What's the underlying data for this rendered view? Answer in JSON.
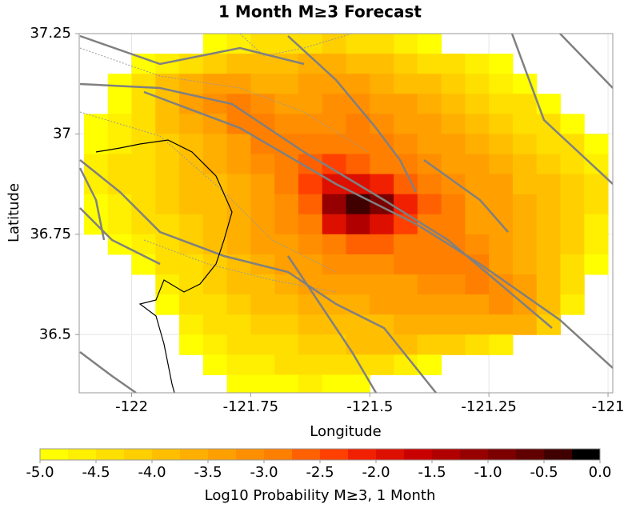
{
  "chart_data": {
    "type": "heatmap",
    "title": "1 Month M≥3 Forecast",
    "x_label": "Longitude",
    "y_label": "Latitude",
    "colorbar_label": "Log10 Probability M≥3, 1 Month",
    "xlim": [
      -122.11,
      -120.99
    ],
    "ylim": [
      36.355,
      37.25
    ],
    "xticks": [
      -122,
      -121.75,
      -121.5,
      -121.25,
      -121
    ],
    "yticks": [
      36.5,
      36.75,
      37,
      37.25
    ],
    "grid": true,
    "x": [
      -122.075,
      -122.025,
      -121.975,
      -121.925,
      -121.875,
      -121.825,
      -121.775,
      -121.725,
      -121.675,
      -121.625,
      -121.575,
      -121.525,
      -121.475,
      -121.425,
      -121.375,
      -121.325,
      -121.275,
      -121.225,
      -121.175,
      -121.125,
      -121.075,
      -121.025
    ],
    "y": [
      37.225,
      37.175,
      37.125,
      37.075,
      37.025,
      36.975,
      36.925,
      36.875,
      36.825,
      36.775,
      36.725,
      36.675,
      36.625,
      36.575,
      36.525,
      36.475,
      36.425,
      36.375
    ],
    "values": [
      [
        null,
        null,
        null,
        null,
        null,
        -4.8,
        -4.6,
        -4.5,
        -4.4,
        -4.3,
        -4.2,
        -4.3,
        -4.4,
        -4.6,
        -4.8,
        null,
        null,
        null,
        null,
        null,
        null,
        null
      ],
      [
        null,
        null,
        -4.9,
        -4.7,
        -4.5,
        -4.1,
        -4.0,
        -3.9,
        -3.8,
        -3.7,
        -3.7,
        -3.8,
        -3.9,
        -4.1,
        -4.3,
        -4.5,
        -4.7,
        -4.9,
        null,
        null,
        null,
        null
      ],
      [
        null,
        -4.9,
        -4.5,
        -4.0,
        -3.6,
        -3.4,
        -3.5,
        -3.6,
        -3.6,
        -3.5,
        -3.4,
        -3.5,
        -3.6,
        -3.8,
        -4.0,
        -4.2,
        -4.4,
        -4.6,
        -4.8,
        null,
        null,
        null
      ],
      [
        null,
        -4.8,
        -4.3,
        -3.8,
        -3.5,
        -3.2,
        -3.0,
        -3.2,
        -3.4,
        -3.3,
        -3.2,
        -3.2,
        -3.4,
        -3.5,
        -3.7,
        -3.9,
        -4.1,
        -4.3,
        -4.5,
        -4.8,
        null,
        null
      ],
      [
        -4.9,
        -4.6,
        -4.3,
        -4.0,
        -3.6,
        -3.3,
        -3.0,
        -2.9,
        -3.1,
        -3.2,
        -3.1,
        -3.0,
        -3.2,
        -3.4,
        -3.5,
        -3.7,
        -3.9,
        -4.1,
        -4.3,
        -4.5,
        -4.8,
        null
      ],
      [
        -4.8,
        -4.6,
        -4.4,
        -4.2,
        -3.9,
        -3.6,
        -3.3,
        -3.0,
        -2.8,
        -2.9,
        -2.9,
        -2.9,
        -3.0,
        -3.2,
        -3.4,
        -3.5,
        -3.7,
        -3.9,
        -4.1,
        -4.3,
        -4.5,
        -4.8
      ],
      [
        -4.7,
        -4.5,
        -4.4,
        -4.2,
        -4.0,
        -3.7,
        -3.4,
        -3.2,
        -2.9,
        -2.6,
        -2.5,
        -2.6,
        -2.8,
        -3.0,
        -3.2,
        -3.4,
        -3.5,
        -3.7,
        -3.9,
        -4.1,
        -4.3,
        -4.6
      ],
      [
        -4.7,
        -4.5,
        -4.4,
        -4.2,
        -4.0,
        -3.8,
        -3.6,
        -3.3,
        -3.0,
        -2.5,
        -2.0,
        -1.8,
        -2.2,
        -2.6,
        -2.9,
        -3.2,
        -3.4,
        -3.5,
        -3.8,
        -4.0,
        -4.2,
        -4.5
      ],
      [
        -4.8,
        -4.6,
        -4.4,
        -4.2,
        -4.0,
        -3.8,
        -3.6,
        -3.4,
        -3.1,
        -2.6,
        -1.2,
        -0.3,
        -1.0,
        -2.2,
        -2.7,
        -3.0,
        -3.3,
        -3.4,
        -3.6,
        -3.9,
        -4.2,
        -4.5
      ],
      [
        -4.9,
        -4.6,
        -4.4,
        -4.3,
        -4.1,
        -3.9,
        -3.6,
        -3.4,
        -3.2,
        -2.8,
        -1.8,
        -1.4,
        -1.9,
        -2.5,
        -2.8,
        -3.0,
        -3.3,
        -3.4,
        -3.6,
        -3.9,
        -4.2,
        -4.6
      ],
      [
        null,
        -4.8,
        -4.6,
        -4.4,
        -4.2,
        -4.0,
        -3.7,
        -3.5,
        -3.3,
        -3.1,
        -2.8,
        -2.6,
        -2.7,
        -2.8,
        -2.9,
        -3.0,
        -3.2,
        -3.4,
        -3.6,
        -3.9,
        -4.2,
        -4.7
      ],
      [
        null,
        null,
        -4.8,
        -4.5,
        -4.3,
        -4.1,
        -3.9,
        -3.7,
        -3.5,
        -3.3,
        -3.2,
        -3.1,
        -3.1,
        -3.0,
        -2.9,
        -2.9,
        -3.0,
        -3.3,
        -3.6,
        -3.9,
        -4.3,
        -4.8
      ],
      [
        null,
        null,
        null,
        -4.7,
        -4.4,
        -4.2,
        -4.0,
        -3.8,
        -3.7,
        -3.5,
        -3.4,
        -3.3,
        -3.3,
        -3.3,
        -3.2,
        -3.1,
        -3.0,
        -3.1,
        -3.5,
        -3.9,
        -4.4,
        null
      ],
      [
        null,
        null,
        null,
        -4.8,
        -4.5,
        -4.3,
        -4.1,
        -4.0,
        -3.9,
        -3.7,
        -3.6,
        -3.6,
        -3.5,
        -3.5,
        -3.4,
        -3.3,
        -3.3,
        -3.2,
        -3.3,
        -3.8,
        -4.6,
        null
      ],
      [
        null,
        null,
        null,
        null,
        -4.7,
        -4.5,
        -4.3,
        -4.2,
        -4.1,
        -4.0,
        -3.9,
        -3.8,
        -3.8,
        -3.7,
        -3.7,
        -3.6,
        -3.6,
        -3.6,
        -3.7,
        -4.2,
        null,
        null
      ],
      [
        null,
        null,
        null,
        null,
        -4.9,
        -4.7,
        -4.5,
        -4.4,
        -4.3,
        -4.2,
        -4.1,
        -4.0,
        -4.0,
        -4.0,
        -4.1,
        -4.2,
        -4.4,
        -4.6,
        null,
        null,
        null,
        null
      ],
      [
        null,
        null,
        null,
        null,
        null,
        -4.9,
        -4.7,
        -4.6,
        -4.5,
        -4.4,
        -4.4,
        -4.4,
        -4.5,
        -4.6,
        -4.8,
        null,
        null,
        null,
        null,
        null,
        null,
        null
      ],
      [
        null,
        null,
        null,
        null,
        null,
        null,
        -4.9,
        -4.8,
        -4.8,
        -4.7,
        -4.8,
        -4.9,
        null,
        null,
        null,
        null,
        null,
        null,
        null,
        null,
        null,
        null
      ]
    ],
    "clim": [
      -5,
      0
    ],
    "colormap": [
      "#ffff00",
      "#ffef00",
      "#ffdf00",
      "#ffcf00",
      "#ffbf00",
      "#ffaf00",
      "#ff9f00",
      "#ff8f00",
      "#ff7f00",
      "#ff6000",
      "#ff4000",
      "#f02000",
      "#dd1000",
      "#c80000",
      "#b00000",
      "#960000",
      "#7c0000",
      "#600000",
      "#400000",
      "#000000"
    ],
    "cticks": [
      {
        "value": -5,
        "label": "-5.0"
      },
      {
        "value": -4.5,
        "label": "-4.5"
      },
      {
        "value": -4,
        "label": "-4.0"
      },
      {
        "value": -3.5,
        "label": "-3.5"
      },
      {
        "value": -3,
        "label": "-3.0"
      },
      {
        "value": -2.5,
        "label": "-2.5"
      },
      {
        "value": -2,
        "label": "-2.0"
      },
      {
        "value": -1.5,
        "label": "-1.5"
      },
      {
        "value": -1,
        "label": "-1.0"
      },
      {
        "value": -0.5,
        "label": "-0.5"
      },
      {
        "value": 0,
        "label": "0.0"
      }
    ]
  }
}
